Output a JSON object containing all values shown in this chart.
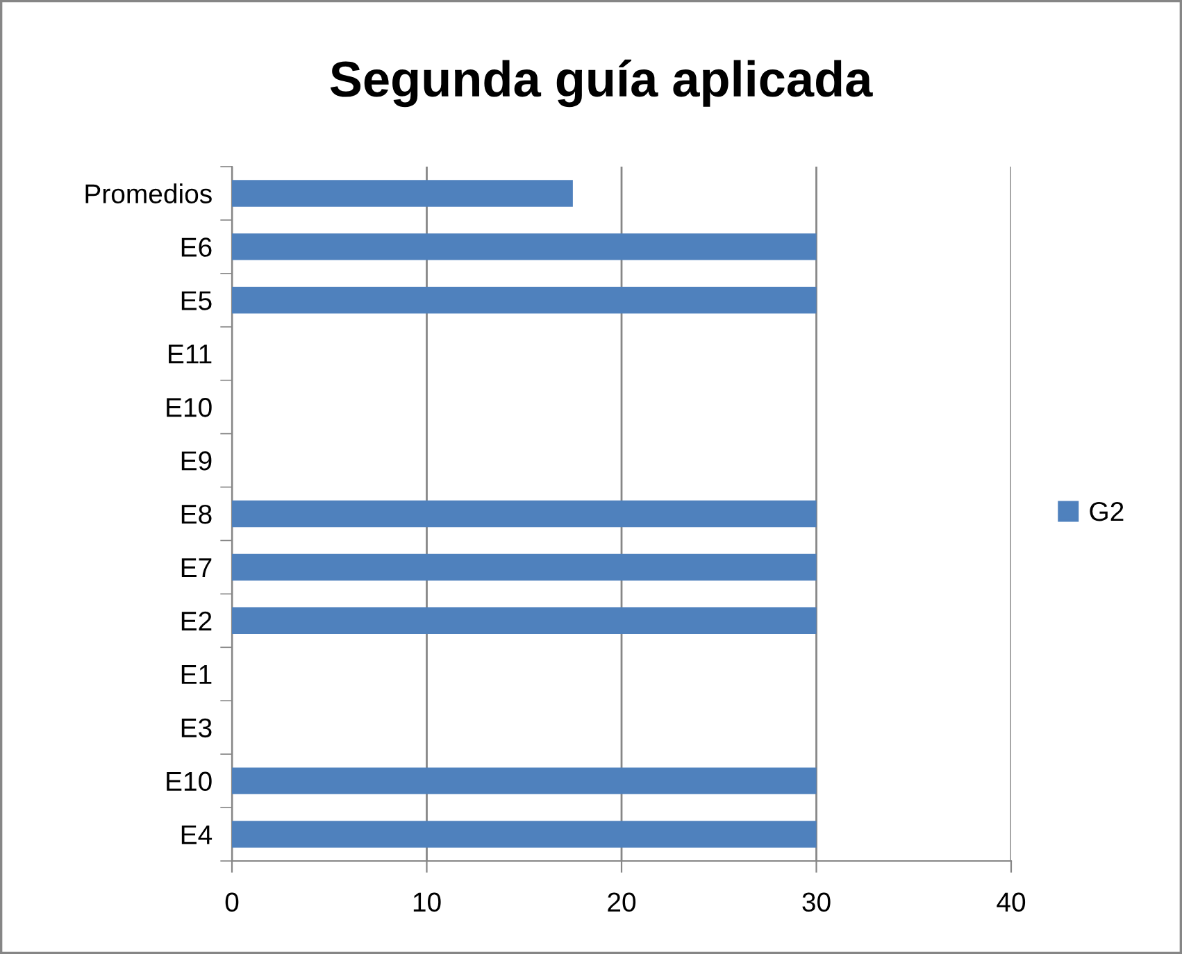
{
  "chart_data": {
    "type": "bar",
    "orientation": "horizontal",
    "title": "Segunda guía aplicada",
    "categories": [
      "Promedios",
      "E6",
      "E5",
      "E11",
      "E10",
      "E9",
      "E8",
      "E7",
      "E2",
      "E1",
      "E3",
      "E10",
      "E4"
    ],
    "series": [
      {
        "name": "G2",
        "color": "#4f81bd",
        "values": [
          17.5,
          30,
          30,
          null,
          null,
          null,
          30,
          30,
          30,
          null,
          null,
          30,
          30
        ]
      }
    ],
    "xlim": [
      0,
      40
    ],
    "xticks": [
      0,
      10,
      20,
      30,
      40
    ],
    "grid": "x",
    "legend": "right"
  }
}
